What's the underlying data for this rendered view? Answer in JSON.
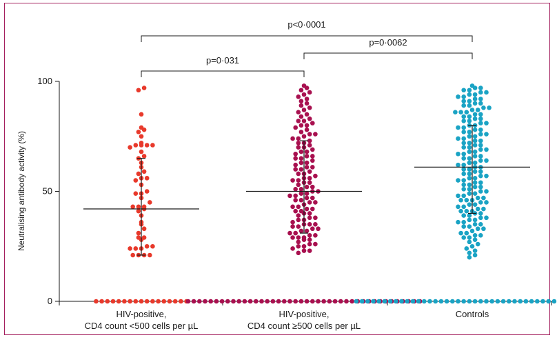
{
  "chart_data": {
    "type": "scatter",
    "title": "",
    "ylabel": "Neutralising antibody activity (%)",
    "xlabel": "",
    "ylim": [
      0,
      100
    ],
    "yticks": [
      {
        "value": 0,
        "label": "0"
      },
      {
        "value": 50,
        "label": "50"
      },
      {
        "value": 100,
        "label": "100"
      }
    ],
    "grid": false,
    "categories": [
      {
        "line1": "HIV-positive,",
        "line2": "CD4 count <500 cells per µL",
        "color": "#e8392b"
      },
      {
        "line1": "HIV-positive,",
        "line2": "CD4 count ≥500 cells per µL",
        "color": "#a8104f"
      },
      {
        "line1": "Controls",
        "line2": "",
        "color": "#1aa3c4"
      }
    ],
    "summary": [
      {
        "median": 42,
        "q1": 21,
        "q3": 65
      },
      {
        "median": 50,
        "q1": 31,
        "q3": 73
      },
      {
        "median": 61,
        "q1": 40,
        "q3": 80
      }
    ],
    "series": [
      {
        "values": [
          0,
          0,
          0,
          0,
          0,
          0,
          0,
          0,
          0,
          0,
          0,
          0,
          0,
          0,
          0,
          0,
          0,
          21,
          21,
          21,
          21,
          24,
          24,
          24,
          25,
          25,
          28,
          29,
          29,
          31,
          33,
          35,
          36,
          39,
          41,
          42,
          43,
          43,
          43,
          45,
          47,
          49,
          49,
          50,
          53,
          55,
          56,
          56,
          58,
          59,
          61,
          63,
          65,
          66,
          68,
          70,
          71,
          71,
          71,
          71,
          72,
          75,
          77,
          78,
          79,
          85,
          96,
          97
        ]
      },
      {
        "values": [
          0,
          0,
          0,
          0,
          0,
          0,
          0,
          0,
          0,
          0,
          0,
          0,
          0,
          0,
          0,
          0,
          0,
          0,
          0,
          0,
          0,
          0,
          0,
          0,
          0,
          0,
          0,
          0,
          0,
          0,
          0,
          0,
          0,
          0,
          0,
          0,
          0,
          0,
          0,
          0,
          0,
          0,
          22,
          23,
          23,
          24,
          25,
          25,
          26,
          26,
          27,
          28,
          28,
          29,
          29,
          29,
          30,
          30,
          31,
          31,
          32,
          32,
          33,
          33,
          34,
          34,
          35,
          35,
          35,
          36,
          37,
          37,
          38,
          38,
          39,
          40,
          40,
          41,
          41,
          42,
          42,
          43,
          43,
          44,
          45,
          45,
          46,
          46,
          47,
          47,
          48,
          48,
          49,
          49,
          50,
          50,
          51,
          51,
          52,
          52,
          53,
          54,
          54,
          55,
          55,
          56,
          56,
          57,
          58,
          58,
          59,
          60,
          60,
          61,
          61,
          62,
          63,
          63,
          64,
          65,
          65,
          66,
          66,
          67,
          68,
          68,
          69,
          70,
          70,
          71,
          72,
          72,
          73,
          74,
          74,
          75,
          76,
          76,
          77,
          78,
          79,
          80,
          80,
          81,
          82,
          82,
          83,
          84,
          85,
          86,
          87,
          88,
          89,
          90,
          91,
          92,
          93,
          94,
          95,
          96,
          97,
          98
        ]
      },
      {
        "values": [
          0,
          0,
          0,
          0,
          0,
          0,
          0,
          0,
          0,
          0,
          0,
          0,
          0,
          0,
          0,
          0,
          0,
          0,
          0,
          0,
          0,
          0,
          0,
          0,
          0,
          0,
          0,
          0,
          0,
          0,
          0,
          0,
          0,
          0,
          0,
          0,
          0,
          0,
          0,
          0,
          0,
          0,
          20,
          21,
          22,
          23,
          24,
          25,
          26,
          27,
          28,
          29,
          29,
          30,
          30,
          31,
          31,
          32,
          33,
          33,
          34,
          34,
          35,
          35,
          36,
          36,
          37,
          37,
          38,
          38,
          39,
          39,
          40,
          40,
          41,
          41,
          41,
          42,
          42,
          43,
          43,
          44,
          44,
          45,
          45,
          46,
          46,
          46,
          47,
          47,
          48,
          48,
          49,
          49,
          50,
          50,
          51,
          51,
          52,
          52,
          53,
          53,
          54,
          54,
          55,
          55,
          56,
          56,
          57,
          57,
          58,
          58,
          59,
          59,
          60,
          60,
          61,
          61,
          62,
          62,
          63,
          63,
          64,
          64,
          65,
          65,
          66,
          66,
          67,
          67,
          68,
          68,
          69,
          69,
          70,
          70,
          71,
          71,
          72,
          72,
          73,
          73,
          74,
          74,
          75,
          75,
          76,
          76,
          77,
          77,
          78,
          78,
          79,
          79,
          80,
          80,
          81,
          81,
          82,
          82,
          83,
          83,
          84,
          84,
          85,
          85,
          86,
          86,
          86,
          87,
          87,
          88,
          88,
          89,
          89,
          90,
          90,
          91,
          91,
          92,
          92,
          93,
          93,
          94,
          94,
          95,
          95,
          96,
          96,
          97,
          97,
          98
        ]
      }
    ],
    "comparisons": [
      {
        "from": 0,
        "to": 2,
        "label": "p<0·0001"
      },
      {
        "from": 0,
        "to": 1,
        "label": "p=0·031"
      },
      {
        "from": 1,
        "to": 2,
        "label": "p=0·0062"
      }
    ]
  }
}
